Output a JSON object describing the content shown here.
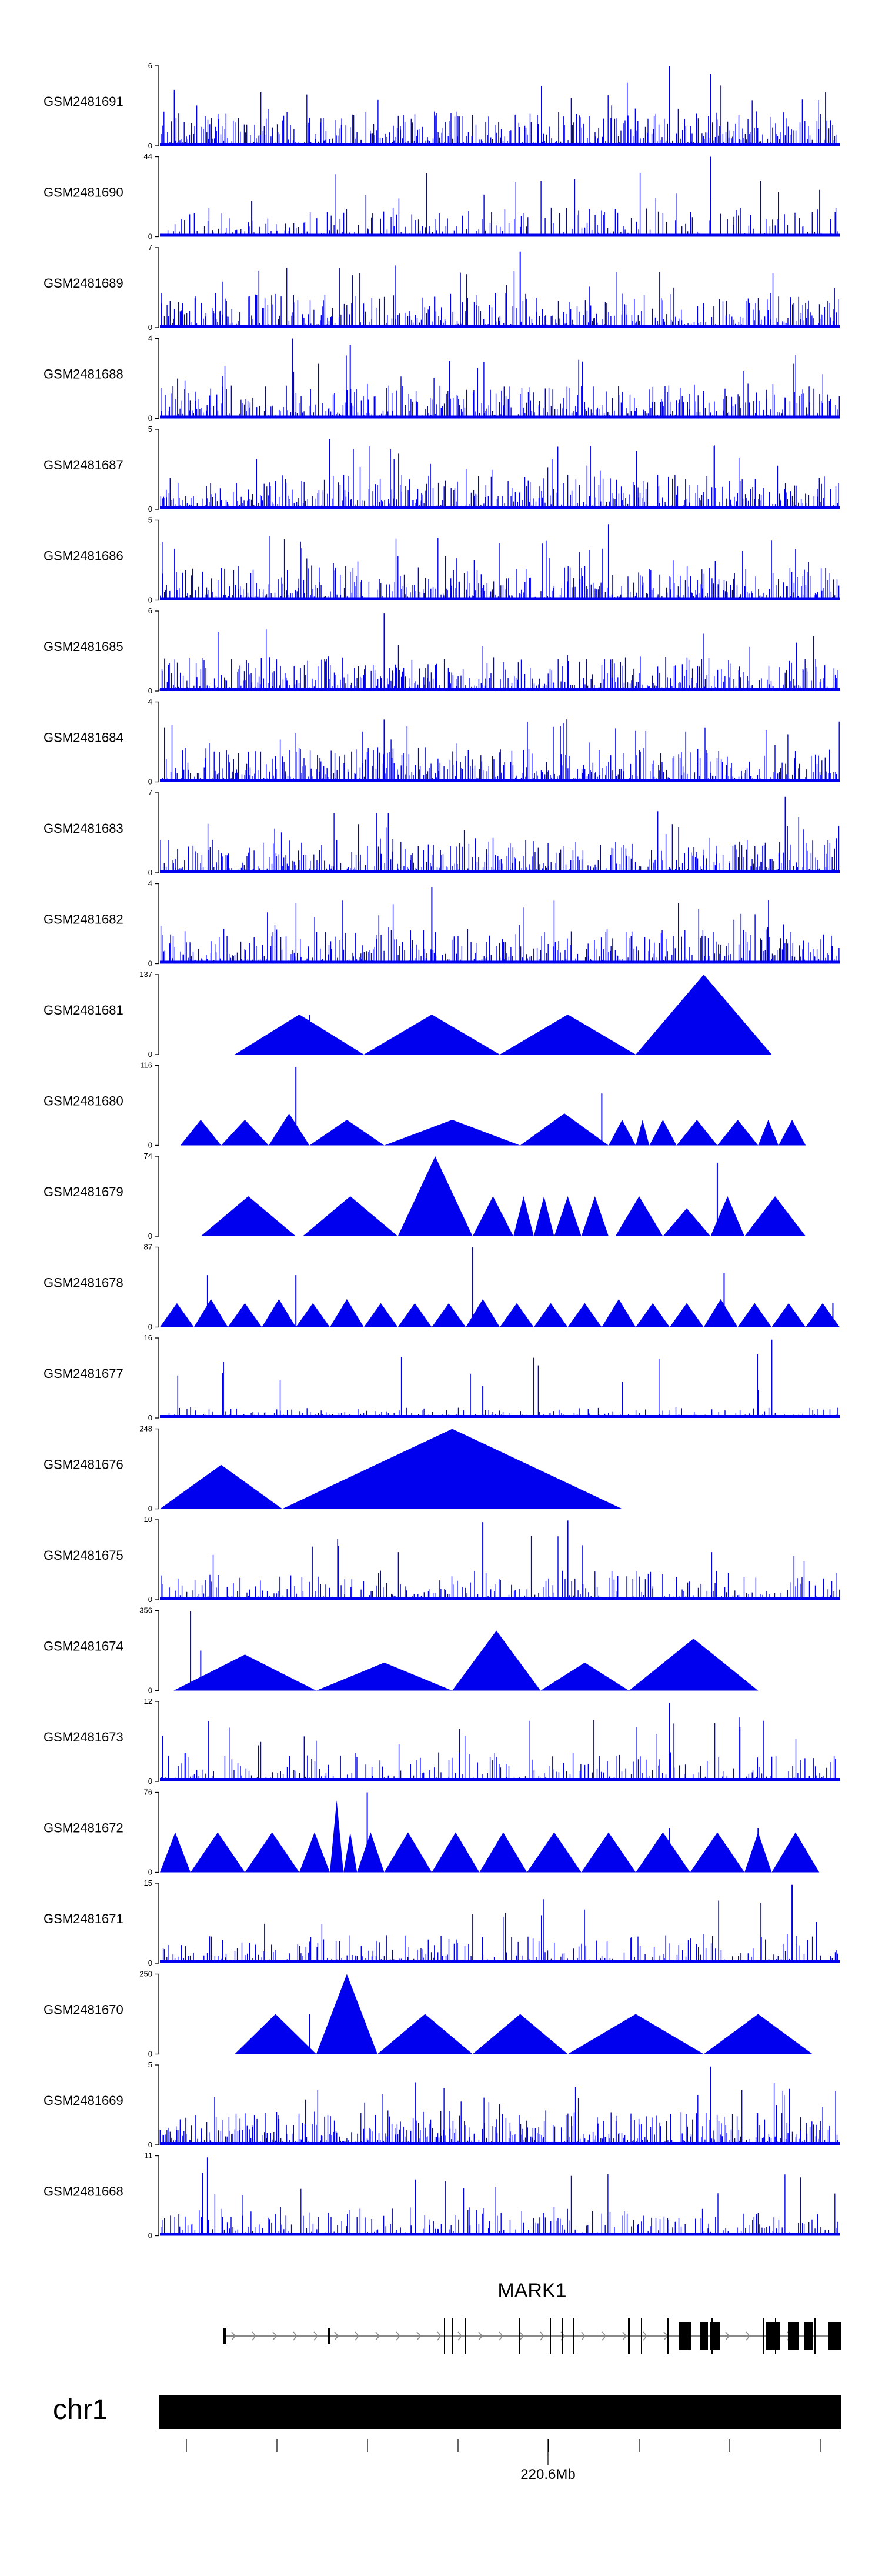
{
  "chart_data": {
    "type": "area",
    "title": "",
    "locus": {
      "chromosome": "chr1",
      "gene": "MARK1",
      "position_label": "220.6Mb"
    },
    "tracks": [
      {
        "name": "GSM2481691",
        "ymax": 6,
        "style": "dense",
        "seed": 11,
        "peaks": [
          [
            0.75,
            1.0
          ],
          [
            0.81,
            0.9
          ]
        ]
      },
      {
        "name": "GSM2481690",
        "ymax": 44,
        "style": "medium",
        "seed": 23,
        "peaks": [
          [
            0.81,
            1.0
          ],
          [
            0.61,
            0.72
          ],
          [
            0.135,
            0.45
          ]
        ]
      },
      {
        "name": "GSM2481689",
        "ymax": 7,
        "style": "dense",
        "seed": 37,
        "peaks": [
          [
            0.53,
            0.95
          ]
        ]
      },
      {
        "name": "GSM2481688",
        "ymax": 4,
        "style": "dense",
        "seed": 41,
        "peaks": [
          [
            0.195,
            1.0
          ],
          [
            0.28,
            0.92
          ]
        ]
      },
      {
        "name": "GSM2481687",
        "ymax": 5,
        "style": "dense",
        "seed": 53,
        "peaks": [
          [
            0.25,
            0.88
          ]
        ]
      },
      {
        "name": "GSM2481686",
        "ymax": 5,
        "style": "dense",
        "seed": 61,
        "peaks": [
          [
            0.66,
            0.95
          ]
        ]
      },
      {
        "name": "GSM2481685",
        "ymax": 6,
        "style": "dense",
        "seed": 73,
        "peaks": [
          [
            0.33,
            0.97
          ]
        ]
      },
      {
        "name": "GSM2481684",
        "ymax": 4,
        "style": "dense",
        "seed": 79,
        "peaks": [
          [
            0.33,
            0.78
          ]
        ]
      },
      {
        "name": "GSM2481683",
        "ymax": 7,
        "style": "dense",
        "seed": 83,
        "peaks": [
          [
            0.92,
            0.95
          ]
        ]
      },
      {
        "name": "GSM2481682",
        "ymax": 4,
        "style": "dense",
        "seed": 97,
        "peaks": [
          [
            0.4,
            0.96
          ]
        ]
      },
      {
        "name": "GSM2481681",
        "ymax": 137,
        "style": "triangles",
        "tri": [
          [
            0.11,
            0.3,
            0.5
          ],
          [
            0.3,
            0.5,
            0.5
          ],
          [
            0.5,
            0.7,
            0.5
          ],
          [
            0.7,
            0.9,
            1.0
          ]
        ],
        "spikes": [
          [
            0.22,
            0.5
          ]
        ]
      },
      {
        "name": "GSM2481680",
        "ymax": 116,
        "style": "triangles",
        "tri": [
          [
            0.03,
            0.09,
            0.32
          ],
          [
            0.09,
            0.16,
            0.32
          ],
          [
            0.16,
            0.22,
            0.4
          ],
          [
            0.22,
            0.33,
            0.32
          ],
          [
            0.33,
            0.53,
            0.32
          ],
          [
            0.53,
            0.66,
            0.4
          ],
          [
            0.66,
            0.7,
            0.32
          ],
          [
            0.7,
            0.72,
            0.32
          ],
          [
            0.72,
            0.76,
            0.32
          ],
          [
            0.76,
            0.82,
            0.32
          ],
          [
            0.82,
            0.88,
            0.32
          ],
          [
            0.88,
            0.91,
            0.32
          ],
          [
            0.91,
            0.95,
            0.32
          ]
        ],
        "spikes": [
          [
            0.2,
            0.98
          ],
          [
            0.65,
            0.65
          ]
        ]
      },
      {
        "name": "GSM2481679",
        "ymax": 74,
        "style": "triangles",
        "tri": [
          [
            0.06,
            0.2,
            0.5
          ],
          [
            0.21,
            0.35,
            0.5
          ],
          [
            0.35,
            0.46,
            1.0
          ],
          [
            0.46,
            0.52,
            0.5
          ],
          [
            0.52,
            0.55,
            0.5
          ],
          [
            0.55,
            0.58,
            0.5
          ],
          [
            0.58,
            0.62,
            0.5
          ],
          [
            0.62,
            0.66,
            0.5
          ],
          [
            0.67,
            0.74,
            0.5
          ],
          [
            0.74,
            0.81,
            0.35
          ],
          [
            0.81,
            0.86,
            0.5
          ],
          [
            0.86,
            0.95,
            0.5
          ]
        ],
        "spikes": [
          [
            0.82,
            0.92
          ]
        ]
      },
      {
        "name": "GSM2481678",
        "ymax": 87,
        "style": "triangles",
        "tri": [
          [
            0.0,
            0.05,
            0.3
          ],
          [
            0.05,
            0.1,
            0.35
          ],
          [
            0.1,
            0.15,
            0.3
          ],
          [
            0.15,
            0.2,
            0.35
          ],
          [
            0.2,
            0.25,
            0.3
          ],
          [
            0.25,
            0.3,
            0.35
          ],
          [
            0.3,
            0.35,
            0.3
          ],
          [
            0.35,
            0.4,
            0.3
          ],
          [
            0.4,
            0.45,
            0.3
          ],
          [
            0.45,
            0.5,
            0.35
          ],
          [
            0.5,
            0.55,
            0.3
          ],
          [
            0.55,
            0.6,
            0.3
          ],
          [
            0.6,
            0.65,
            0.3
          ],
          [
            0.65,
            0.7,
            0.35
          ],
          [
            0.7,
            0.75,
            0.3
          ],
          [
            0.75,
            0.8,
            0.3
          ],
          [
            0.8,
            0.85,
            0.35
          ],
          [
            0.85,
            0.9,
            0.3
          ],
          [
            0.9,
            0.95,
            0.3
          ],
          [
            0.95,
            1.0,
            0.3
          ]
        ],
        "spikes": [
          [
            0.07,
            0.65
          ],
          [
            0.2,
            0.65
          ],
          [
            0.46,
            1.0
          ],
          [
            0.83,
            0.68
          ],
          [
            0.99,
            0.3
          ]
        ]
      },
      {
        "name": "GSM2481677",
        "ymax": 16,
        "style": "sparse",
        "seed": 113,
        "peaks": [
          [
            0.9,
            0.98
          ],
          [
            0.475,
            0.4
          ],
          [
            0.68,
            0.45
          ],
          [
            0.88,
            0.35
          ]
        ]
      },
      {
        "name": "GSM2481676",
        "ymax": 248,
        "style": "triangles",
        "tri": [
          [
            0.0,
            0.18,
            0.55
          ],
          [
            0.18,
            0.68,
            1.0
          ]
        ],
        "spikes": []
      },
      {
        "name": "GSM2481675",
        "ymax": 10,
        "style": "medium",
        "seed": 131,
        "peaks": [
          [
            0.475,
            0.97
          ],
          [
            0.6,
            0.99
          ]
        ]
      },
      {
        "name": "GSM2481674",
        "ymax": 356,
        "style": "triangles",
        "tri": [
          [
            0.02,
            0.23,
            0.45
          ],
          [
            0.23,
            0.43,
            0.35
          ],
          [
            0.43,
            0.56,
            0.75
          ],
          [
            0.56,
            0.69,
            0.35
          ],
          [
            0.69,
            0.88,
            0.65
          ]
        ],
        "spikes": [
          [
            0.045,
            0.99
          ],
          [
            0.06,
            0.5
          ]
        ]
      },
      {
        "name": "GSM2481673",
        "ymax": 12,
        "style": "medium",
        "seed": 149,
        "peaks": [
          [
            0.75,
            0.98
          ]
        ]
      },
      {
        "name": "GSM2481672",
        "ymax": 76,
        "style": "triangles",
        "tri": [
          [
            0.0,
            0.045,
            0.5
          ],
          [
            0.045,
            0.125,
            0.5
          ],
          [
            0.125,
            0.205,
            0.5
          ],
          [
            0.205,
            0.25,
            0.5
          ],
          [
            0.25,
            0.27,
            0.9
          ],
          [
            0.27,
            0.29,
            0.5
          ],
          [
            0.29,
            0.33,
            0.5
          ],
          [
            0.33,
            0.4,
            0.5
          ],
          [
            0.4,
            0.47,
            0.5
          ],
          [
            0.47,
            0.54,
            0.5
          ],
          [
            0.54,
            0.62,
            0.5
          ],
          [
            0.62,
            0.7,
            0.5
          ],
          [
            0.7,
            0.78,
            0.5
          ],
          [
            0.78,
            0.86,
            0.5
          ],
          [
            0.86,
            0.9,
            0.5
          ],
          [
            0.9,
            0.97,
            0.5
          ]
        ],
        "spikes": [
          [
            0.305,
            1.0
          ],
          [
            0.75,
            0.55
          ],
          [
            0.88,
            0.55
          ]
        ]
      },
      {
        "name": "GSM2481671",
        "ymax": 15,
        "style": "medium",
        "seed": 167,
        "peaks": [
          [
            0.93,
            0.98
          ]
        ]
      },
      {
        "name": "GSM2481670",
        "ymax": 250,
        "style": "triangles",
        "tri": [
          [
            0.11,
            0.23,
            0.5
          ],
          [
            0.23,
            0.32,
            1.0
          ],
          [
            0.32,
            0.46,
            0.5
          ],
          [
            0.46,
            0.6,
            0.5
          ],
          [
            0.6,
            0.8,
            0.5
          ],
          [
            0.8,
            0.96,
            0.5
          ]
        ],
        "spikes": [
          [
            0.22,
            0.5
          ]
        ]
      },
      {
        "name": "GSM2481669",
        "ymax": 5,
        "style": "dense",
        "seed": 181,
        "peaks": [
          [
            0.81,
            0.98
          ]
        ]
      },
      {
        "name": "GSM2481668",
        "ymax": 11,
        "style": "medium",
        "seed": 191,
        "peaks": [
          [
            0.07,
            0.98
          ]
        ]
      }
    ]
  },
  "colors": {
    "signal": "#0000ee",
    "axis": "#000000",
    "gene": "#000000",
    "ideogram": "#000000"
  }
}
